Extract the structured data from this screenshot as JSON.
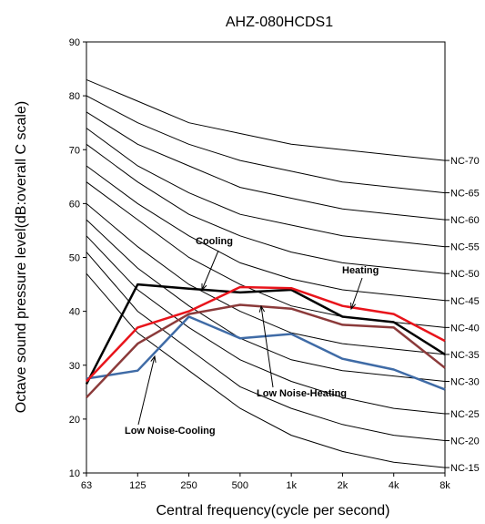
{
  "chart_data": {
    "type": "line",
    "title": "AHZ-080HCDS1",
    "xlabel": "Central frequency(cycle per second)",
    "ylabel": "Octave sound pressure level(dB:overall C scale)",
    "categories": [
      "63",
      "125",
      "250",
      "500",
      "1k",
      "2k",
      "4k",
      "8k"
    ],
    "ylim": [
      10,
      90
    ],
    "yticks": [
      10,
      20,
      30,
      40,
      50,
      60,
      70,
      80,
      90
    ],
    "grid": false,
    "nc_curves": [
      {
        "name": "NC-70",
        "values": [
          83,
          79,
          75,
          73,
          71,
          70,
          69,
          68
        ]
      },
      {
        "name": "NC-65",
        "values": [
          80,
          75,
          71,
          68,
          66,
          64,
          63,
          62
        ]
      },
      {
        "name": "NC-60",
        "values": [
          77,
          71,
          67,
          63,
          61,
          59,
          58,
          57
        ]
      },
      {
        "name": "NC-55",
        "values": [
          74,
          67,
          62,
          58,
          56,
          54,
          53,
          52
        ]
      },
      {
        "name": "NC-50",
        "values": [
          71,
          64,
          58,
          54,
          51,
          49,
          48,
          47
        ]
      },
      {
        "name": "NC-45",
        "values": [
          67,
          60,
          54,
          49,
          46,
          44,
          43,
          42
        ]
      },
      {
        "name": "NC-40",
        "values": [
          64,
          57,
          50,
          45,
          41,
          39,
          38,
          37
        ]
      },
      {
        "name": "NC-35",
        "values": [
          60,
          52,
          45,
          40,
          36,
          34,
          33,
          32
        ]
      },
      {
        "name": "NC-30",
        "values": [
          57,
          48,
          41,
          35,
          31,
          29,
          28,
          27
        ]
      },
      {
        "name": "NC-25",
        "values": [
          54,
          44,
          37,
          31,
          27,
          24,
          22,
          21
        ]
      },
      {
        "name": "NC-20",
        "values": [
          51,
          40,
          33,
          26,
          22,
          19,
          17,
          16
        ]
      },
      {
        "name": "NC-15",
        "values": [
          47,
          36,
          29,
          22,
          17,
          14,
          12,
          11
        ]
      }
    ],
    "series": [
      {
        "name": "Cooling",
        "color": "#000000",
        "values": [
          26.5,
          45,
          44.2,
          43.5,
          44,
          39,
          38,
          32
        ]
      },
      {
        "name": "Heating",
        "color": "#e8141b",
        "values": [
          27,
          37,
          40,
          44.5,
          44.3,
          41,
          39.5,
          34.5
        ]
      },
      {
        "name": "Low Noise-Heating",
        "color": "#8b3a3a",
        "values": [
          24,
          34,
          39.5,
          41.2,
          40.5,
          37.5,
          37,
          29.5
        ]
      },
      {
        "name": "Low Noise-Cooling",
        "color": "#3f6ba6",
        "values": [
          27.5,
          29,
          39,
          35,
          35.8,
          31.2,
          29.2,
          25.5
        ]
      }
    ]
  }
}
